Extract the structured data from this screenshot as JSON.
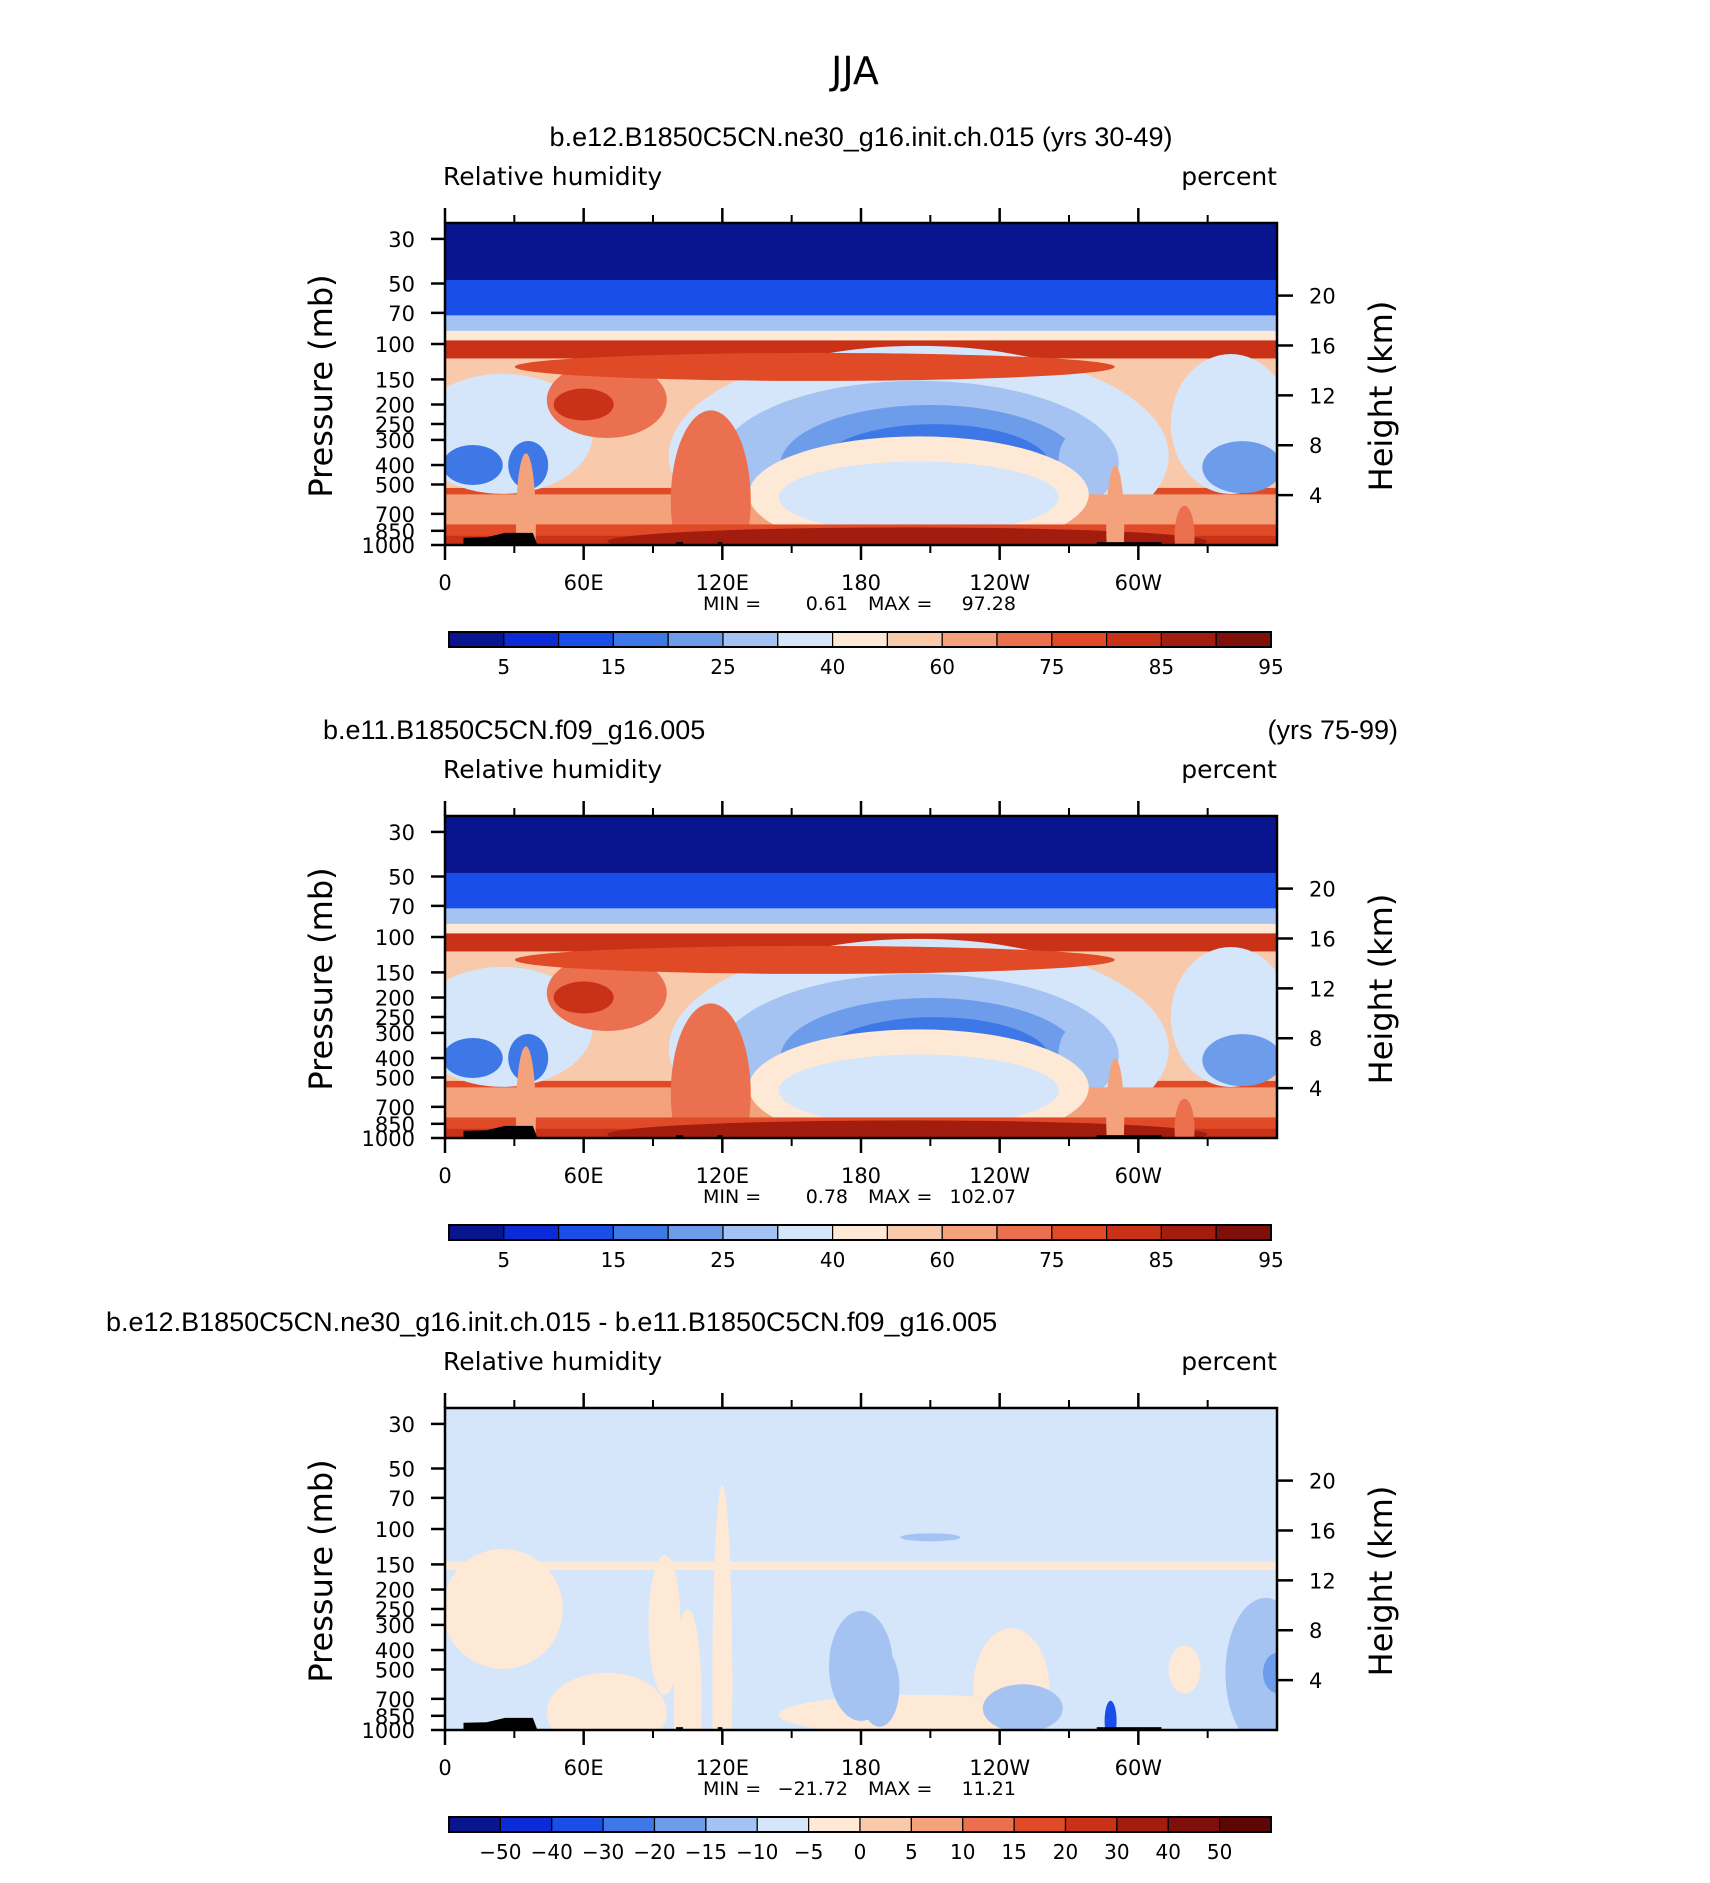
{
  "figure_title": "JJA",
  "chart_data": [
    {
      "type": "heatmap",
      "title": "b.e12.B1850C5CN.ne30_g16.init.ch.015 (yrs 30-49)",
      "title_right": "",
      "left_string": "Relative humidity",
      "right_string": "percent",
      "ylabel": "Pressure (mb)",
      "ylabel_right": "Height (km)",
      "x_ticks": [
        "0",
        "60E",
        "120E",
        "180",
        "120W",
        "60W"
      ],
      "y_ticks": [
        "30",
        "50",
        "70",
        "100",
        "150",
        "200",
        "250",
        "300",
        "400",
        "500",
        "700",
        "850",
        "1000"
      ],
      "y_ticks_right": [
        "20",
        "16",
        "12",
        "8",
        "4"
      ],
      "min_label": "MIN =",
      "min_value": "0.61",
      "max_label": "MAX =",
      "max_value": "97.28",
      "colorbar_labels": [
        "5",
        "15",
        "25",
        "40",
        "60",
        "75",
        "85",
        "95"
      ],
      "colorbar_colors": [
        "#08158f",
        "#0b2bd6",
        "#1a4ee8",
        "#3d78e6",
        "#6d9cea",
        "#a5c3f2",
        "#d5e6fa",
        "#fde9d6",
        "#f9c9ac",
        "#f4a27c",
        "#ea7050",
        "#e14a27",
        "#c93216",
        "#a31d0e",
        "#7e0f0a"
      ]
    },
    {
      "type": "heatmap",
      "title": "b.e11.B1850C5CN.f09_g16.005",
      "title_right": "(yrs 75-99)",
      "left_string": "Relative humidity",
      "right_string": "percent",
      "ylabel": "Pressure (mb)",
      "ylabel_right": "Height (km)",
      "x_ticks": [
        "0",
        "60E",
        "120E",
        "180",
        "120W",
        "60W"
      ],
      "y_ticks": [
        "30",
        "50",
        "70",
        "100",
        "150",
        "200",
        "250",
        "300",
        "400",
        "500",
        "700",
        "850",
        "1000"
      ],
      "y_ticks_right": [
        "20",
        "16",
        "12",
        "8",
        "4"
      ],
      "min_label": "MIN =",
      "min_value": "0.78",
      "max_label": "MAX =",
      "max_value": "102.07",
      "colorbar_labels": [
        "5",
        "15",
        "25",
        "40",
        "60",
        "75",
        "85",
        "95"
      ],
      "colorbar_colors": [
        "#08158f",
        "#0b2bd6",
        "#1a4ee8",
        "#3d78e6",
        "#6d9cea",
        "#a5c3f2",
        "#d5e6fa",
        "#fde9d6",
        "#f9c9ac",
        "#f4a27c",
        "#ea7050",
        "#e14a27",
        "#c93216",
        "#a31d0e",
        "#7e0f0a"
      ]
    },
    {
      "type": "heatmap",
      "title": "b.e12.B1850C5CN.ne30_g16.init.ch.015 - b.e11.B1850C5CN.f09_g16.005",
      "title_right": "",
      "left_string": "Relative humidity",
      "right_string": "percent",
      "ylabel": "Pressure (mb)",
      "ylabel_right": "Height (km)",
      "x_ticks": [
        "0",
        "60E",
        "120E",
        "180",
        "120W",
        "60W"
      ],
      "y_ticks": [
        "30",
        "50",
        "70",
        "100",
        "150",
        "200",
        "250",
        "300",
        "400",
        "500",
        "700",
        "850",
        "1000"
      ],
      "y_ticks_right": [
        "20",
        "16",
        "12",
        "8",
        "4"
      ],
      "min_label": "MIN =",
      "min_value": "−21.72",
      "max_label": "MAX =",
      "max_value": "11.21",
      "colorbar_labels": [
        "−50",
        "−40",
        "−30",
        "−20",
        "−15",
        "−10",
        "−5",
        "0",
        "5",
        "10",
        "15",
        "20",
        "30",
        "40",
        "50"
      ],
      "colorbar_colors": [
        "#08158f",
        "#0b2bd6",
        "#1a4ee8",
        "#3d78e6",
        "#6d9cea",
        "#a5c3f2",
        "#d5e6fa",
        "#fde9d6",
        "#f9c9ac",
        "#f4a27c",
        "#ea7050",
        "#e14a27",
        "#c93216",
        "#a31d0e",
        "#7e0f0a",
        "#5e0606"
      ]
    }
  ]
}
